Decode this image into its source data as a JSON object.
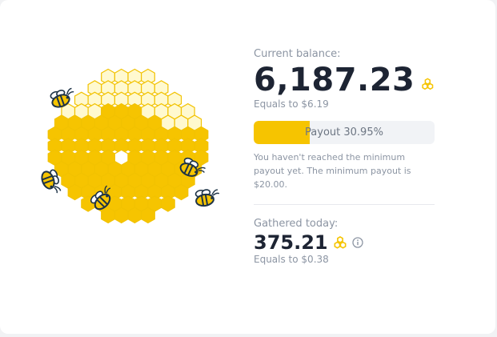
{
  "balance": {
    "label": "Current balance:",
    "value": "6,187.23",
    "equals": "Equals to $6.19",
    "coin_icon": "honeycomb-coin-icon"
  },
  "payout": {
    "label": "Payout 30.95%",
    "progress_percent": 30.95,
    "note": "You haven't reached the minimum payout yet. The minimum payout is $20.00."
  },
  "today": {
    "label": "Gathered today:",
    "value": "375.21",
    "equals": "Equals to $0.38",
    "coin_icon": "honeycomb-coin-icon",
    "info_icon": "info-icon"
  },
  "colors": {
    "accent_yellow": "#f6c400",
    "pale_yellow": "#fff9cf",
    "dark_text": "#1d2433",
    "muted_text": "#8c95a3",
    "bee_outline": "#1e3347"
  }
}
